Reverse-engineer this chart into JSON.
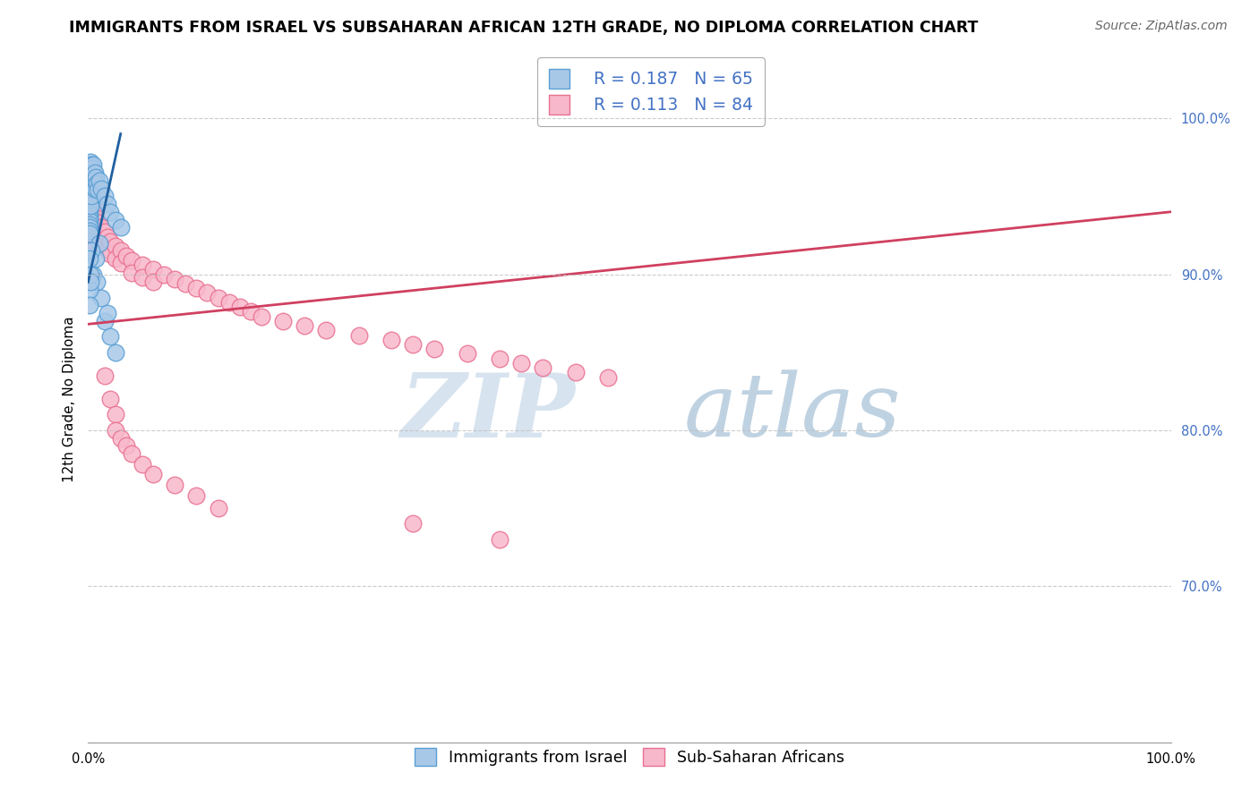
{
  "title": "IMMIGRANTS FROM ISRAEL VS SUBSAHARAN AFRICAN 12TH GRADE, NO DIPLOMA CORRELATION CHART",
  "source": "Source: ZipAtlas.com",
  "ylabel": "12th Grade, No Diploma",
  "legend_entries": [
    {
      "label": "Immigrants from Israel",
      "R": "0.187",
      "N": "65"
    },
    {
      "label": "Sub-Saharan Africans",
      "R": "0.113",
      "N": "84"
    }
  ],
  "israel_scatter": [
    [
      0.001,
      0.97
    ],
    [
      0.001,
      0.968
    ],
    [
      0.001,
      0.965
    ],
    [
      0.001,
      0.963
    ],
    [
      0.001,
      0.96
    ],
    [
      0.001,
      0.958
    ],
    [
      0.001,
      0.955
    ],
    [
      0.001,
      0.952
    ],
    [
      0.001,
      0.95
    ],
    [
      0.001,
      0.948
    ],
    [
      0.001,
      0.945
    ],
    [
      0.001,
      0.942
    ],
    [
      0.001,
      0.94
    ],
    [
      0.001,
      0.938
    ],
    [
      0.001,
      0.936
    ],
    [
      0.001,
      0.934
    ],
    [
      0.001,
      0.932
    ],
    [
      0.001,
      0.93
    ],
    [
      0.001,
      0.928
    ],
    [
      0.001,
      0.926
    ],
    [
      0.002,
      0.972
    ],
    [
      0.002,
      0.968
    ],
    [
      0.002,
      0.964
    ],
    [
      0.002,
      0.96
    ],
    [
      0.002,
      0.956
    ],
    [
      0.002,
      0.952
    ],
    [
      0.002,
      0.948
    ],
    [
      0.002,
      0.944
    ],
    [
      0.003,
      0.97
    ],
    [
      0.003,
      0.965
    ],
    [
      0.003,
      0.96
    ],
    [
      0.003,
      0.955
    ],
    [
      0.003,
      0.95
    ],
    [
      0.004,
      0.968
    ],
    [
      0.004,
      0.962
    ],
    [
      0.004,
      0.956
    ],
    [
      0.005,
      0.97
    ],
    [
      0.005,
      0.96
    ],
    [
      0.006,
      0.965
    ],
    [
      0.006,
      0.955
    ],
    [
      0.007,
      0.962
    ],
    [
      0.008,
      0.958
    ],
    [
      0.009,
      0.954
    ],
    [
      0.01,
      0.96
    ],
    [
      0.012,
      0.955
    ],
    [
      0.015,
      0.95
    ],
    [
      0.018,
      0.945
    ],
    [
      0.02,
      0.94
    ],
    [
      0.025,
      0.935
    ],
    [
      0.03,
      0.93
    ],
    [
      0.015,
      0.87
    ],
    [
      0.02,
      0.86
    ],
    [
      0.025,
      0.85
    ],
    [
      0.005,
      0.9
    ],
    [
      0.008,
      0.895
    ],
    [
      0.012,
      0.885
    ],
    [
      0.018,
      0.875
    ],
    [
      0.01,
      0.92
    ],
    [
      0.007,
      0.91
    ],
    [
      0.003,
      0.915
    ],
    [
      0.001,
      0.91
    ],
    [
      0.001,
      0.89
    ],
    [
      0.001,
      0.88
    ],
    [
      0.002,
      0.9
    ],
    [
      0.002,
      0.895
    ]
  ],
  "subsaharan_scatter": [
    [
      0.001,
      0.955
    ],
    [
      0.001,
      0.948
    ],
    [
      0.001,
      0.94
    ],
    [
      0.001,
      0.932
    ],
    [
      0.001,
      0.925
    ],
    [
      0.002,
      0.958
    ],
    [
      0.002,
      0.95
    ],
    [
      0.002,
      0.942
    ],
    [
      0.002,
      0.934
    ],
    [
      0.003,
      0.952
    ],
    [
      0.003,
      0.945
    ],
    [
      0.003,
      0.938
    ],
    [
      0.003,
      0.93
    ],
    [
      0.003,
      0.922
    ],
    [
      0.004,
      0.948
    ],
    [
      0.004,
      0.94
    ],
    [
      0.004,
      0.932
    ],
    [
      0.005,
      0.945
    ],
    [
      0.005,
      0.937
    ],
    [
      0.005,
      0.929
    ],
    [
      0.006,
      0.942
    ],
    [
      0.006,
      0.934
    ],
    [
      0.007,
      0.939
    ],
    [
      0.007,
      0.931
    ],
    [
      0.008,
      0.936
    ],
    [
      0.008,
      0.928
    ],
    [
      0.01,
      0.933
    ],
    [
      0.01,
      0.925
    ],
    [
      0.012,
      0.93
    ],
    [
      0.012,
      0.922
    ],
    [
      0.015,
      0.927
    ],
    [
      0.015,
      0.919
    ],
    [
      0.018,
      0.924
    ],
    [
      0.018,
      0.916
    ],
    [
      0.02,
      0.921
    ],
    [
      0.02,
      0.913
    ],
    [
      0.025,
      0.918
    ],
    [
      0.025,
      0.91
    ],
    [
      0.03,
      0.915
    ],
    [
      0.03,
      0.907
    ],
    [
      0.035,
      0.912
    ],
    [
      0.04,
      0.909
    ],
    [
      0.04,
      0.901
    ],
    [
      0.05,
      0.906
    ],
    [
      0.05,
      0.898
    ],
    [
      0.06,
      0.903
    ],
    [
      0.06,
      0.895
    ],
    [
      0.07,
      0.9
    ],
    [
      0.08,
      0.897
    ],
    [
      0.09,
      0.894
    ],
    [
      0.1,
      0.891
    ],
    [
      0.11,
      0.888
    ],
    [
      0.12,
      0.885
    ],
    [
      0.13,
      0.882
    ],
    [
      0.14,
      0.879
    ],
    [
      0.15,
      0.876
    ],
    [
      0.16,
      0.873
    ],
    [
      0.18,
      0.87
    ],
    [
      0.2,
      0.867
    ],
    [
      0.22,
      0.864
    ],
    [
      0.25,
      0.861
    ],
    [
      0.28,
      0.858
    ],
    [
      0.3,
      0.855
    ],
    [
      0.32,
      0.852
    ],
    [
      0.35,
      0.849
    ],
    [
      0.38,
      0.846
    ],
    [
      0.4,
      0.843
    ],
    [
      0.42,
      0.84
    ],
    [
      0.45,
      0.837
    ],
    [
      0.48,
      0.834
    ],
    [
      0.015,
      0.835
    ],
    [
      0.02,
      0.82
    ],
    [
      0.025,
      0.81
    ],
    [
      0.025,
      0.8
    ],
    [
      0.03,
      0.795
    ],
    [
      0.035,
      0.79
    ],
    [
      0.04,
      0.785
    ],
    [
      0.05,
      0.778
    ],
    [
      0.06,
      0.772
    ],
    [
      0.08,
      0.765
    ],
    [
      0.1,
      0.758
    ],
    [
      0.12,
      0.75
    ],
    [
      0.3,
      0.74
    ],
    [
      0.38,
      0.73
    ]
  ],
  "israel_line": {
    "x": [
      0.0,
      0.03
    ],
    "y": [
      0.895,
      0.99
    ]
  },
  "subsaharan_line": {
    "x": [
      0.0,
      1.0
    ],
    "y": [
      0.868,
      0.94
    ]
  },
  "israel_scatter_color": "#a8c8e8",
  "israel_edge_color": "#5a9fd4",
  "subsaharan_scatter_color": "#f8b8cc",
  "subsaharan_edge_color": "#e87090",
  "israel_line_color": "#2060a0",
  "subsaharan_line_color": "#d04060",
  "watermark_zip": "ZIP",
  "watermark_atlas": "atlas",
  "xlim": [
    0.0,
    1.0
  ],
  "ylim": [
    0.6,
    1.04
  ],
  "grid_color": "#c0c0c0",
  "right_tick_color": "#4472c4",
  "title_fontsize": 12.5,
  "source_fontsize": 10,
  "axis_label_fontsize": 11,
  "tick_fontsize": 10.5,
  "legend_fontsize": 13.5
}
